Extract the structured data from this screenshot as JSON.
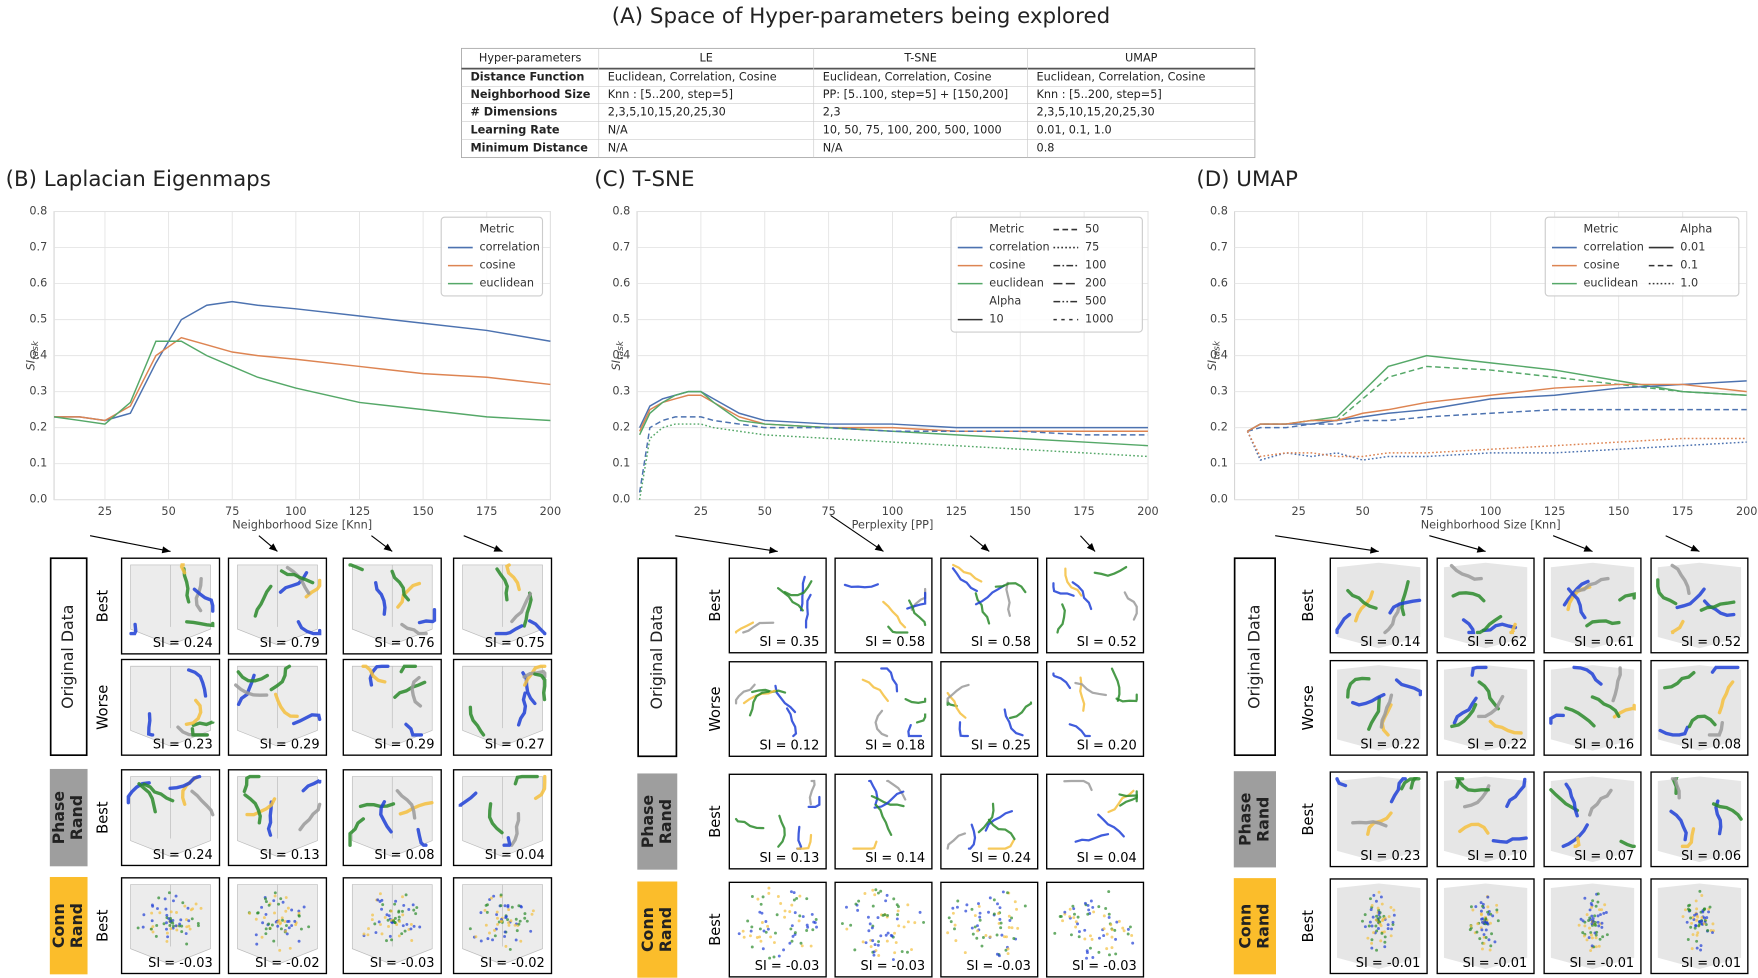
{
  "title": "(A) Space of Hyper-parameters being explored",
  "table": {
    "header": [
      "Hyper-parameters",
      "LE",
      "T-SNE",
      "UMAP"
    ],
    "rows": [
      [
        "Distance Function",
        "Euclidean, Correlation, Cosine",
        "Euclidean, Correlation, Cosine",
        "Euclidean, Correlation, Cosine"
      ],
      [
        "Neighborhood Size",
        "Knn : [5..200, step=5]",
        "PP: [5..100, step=5] + [150,200]",
        "Knn : [5..200, step=5]"
      ],
      [
        "# Dimensions",
        "2,3,5,10,15,20,25,30",
        "2,3",
        "2,3,5,10,15,20,25,30"
      ],
      [
        "Learning Rate",
        "N/A",
        "10, 50, 75, 100, 200, 500, 1000",
        "0.01, 0.1, 1.0"
      ],
      [
        "Minimum Distance",
        "N/A",
        "N/A",
        "0.8"
      ]
    ]
  },
  "chart_data": [
    {
      "type": "line",
      "title": "(B) Laplacian Eigenmaps",
      "xlabel": "Neighborhood Size [Knn]",
      "ylabel": "SI",
      "ylabel_sub": "task",
      "xlim": [
        5,
        200
      ],
      "ylim": [
        0,
        0.8
      ],
      "xticks": [
        25,
        50,
        75,
        100,
        125,
        150,
        175,
        200
      ],
      "yticks": [
        {
          "value": 0,
          "label": "0.0"
        },
        0.1,
        0.2,
        0.3,
        0.4,
        0.5,
        0.6,
        0.7,
        0.8
      ],
      "grid": true,
      "x": [
        5,
        15,
        25,
        35,
        45,
        55,
        65,
        75,
        85,
        100,
        125,
        150,
        175,
        200
      ],
      "series": [
        {
          "name": "correlation",
          "color": "#4c72b0",
          "dash": "solid",
          "values": [
            0.23,
            0.23,
            0.22,
            0.24,
            0.38,
            0.5,
            0.54,
            0.55,
            0.54,
            0.53,
            0.51,
            0.49,
            0.47,
            0.44
          ]
        },
        {
          "name": "cosine",
          "color": "#dd8452",
          "dash": "solid",
          "values": [
            0.23,
            0.23,
            0.22,
            0.26,
            0.4,
            0.45,
            0.43,
            0.41,
            0.4,
            0.39,
            0.37,
            0.35,
            0.34,
            0.32
          ]
        },
        {
          "name": "euclidean",
          "color": "#55a868",
          "dash": "solid",
          "values": [
            0.23,
            0.22,
            0.21,
            0.27,
            0.44,
            0.44,
            0.4,
            0.37,
            0.34,
            0.31,
            0.27,
            0.25,
            0.23,
            0.22
          ]
        }
      ],
      "legend": {
        "corner": "upper right",
        "columns": [
          [
            {
              "label": "Metric"
            },
            {
              "label": "correlation",
              "color": "#4c72b0",
              "dash": "solid"
            },
            {
              "label": "cosine",
              "color": "#dd8452",
              "dash": "solid"
            },
            {
              "label": "euclidean",
              "color": "#55a868",
              "dash": "solid"
            }
          ]
        ]
      }
    },
    {
      "type": "line",
      "title": "(C) T-SNE",
      "xlabel": "Perplexity [PP]",
      "ylabel": "SI",
      "ylabel_sub": "task",
      "xlim": [
        0,
        200
      ],
      "ylim": [
        0,
        0.8
      ],
      "xticks": [
        25,
        50,
        75,
        100,
        125,
        150,
        175,
        200
      ],
      "yticks": [
        {
          "value": 0,
          "label": "0.0"
        },
        0.1,
        0.2,
        0.3,
        0.4,
        0.5,
        0.6,
        0.7,
        0.8
      ],
      "grid": true,
      "x": [
        1,
        5,
        10,
        15,
        20,
        25,
        30,
        40,
        50,
        75,
        100,
        125,
        150,
        175,
        200
      ],
      "series": [
        {
          "name": "correlation",
          "color": "#4c72b0",
          "dash": "solid",
          "values": [
            0.2,
            0.26,
            0.28,
            0.29,
            0.3,
            0.3,
            0.28,
            0.24,
            0.22,
            0.21,
            0.21,
            0.2,
            0.2,
            0.2,
            0.2
          ]
        },
        {
          "name": "cosine",
          "color": "#dd8452",
          "dash": "solid",
          "values": [
            0.19,
            0.25,
            0.27,
            0.28,
            0.29,
            0.29,
            0.27,
            0.23,
            0.21,
            0.2,
            0.2,
            0.19,
            0.19,
            0.19,
            0.19
          ]
        },
        {
          "name": "euclidean",
          "color": "#55a868",
          "dash": "solid",
          "values": [
            0.18,
            0.24,
            0.27,
            0.29,
            0.3,
            0.3,
            0.27,
            0.22,
            0.21,
            0.2,
            0.19,
            0.18,
            0.17,
            0.16,
            0.15
          ]
        },
        {
          "name": "correlation",
          "color": "#4c72b0",
          "dash": "dashed",
          "values": [
            0.02,
            0.2,
            0.22,
            0.23,
            0.23,
            0.23,
            0.22,
            0.21,
            0.2,
            0.2,
            0.19,
            0.19,
            0.19,
            0.18,
            0.18
          ]
        },
        {
          "name": "euclidean",
          "color": "#55a868",
          "dash": "dotted",
          "values": [
            0,
            0.17,
            0.2,
            0.21,
            0.21,
            0.21,
            0.2,
            0.19,
            0.18,
            0.17,
            0.16,
            0.15,
            0.14,
            0.13,
            0.12
          ]
        }
      ],
      "legend": {
        "corner": "upper right",
        "columns": [
          [
            {
              "label": "Metric"
            },
            {
              "label": "correlation",
              "color": "#4c72b0",
              "dash": "solid"
            },
            {
              "label": "cosine",
              "color": "#dd8452",
              "dash": "solid"
            },
            {
              "label": "euclidean",
              "color": "#55a868",
              "dash": "solid"
            },
            {
              "label": "Alpha"
            },
            {
              "label": "10",
              "color": "#333333",
              "dash": "solid"
            }
          ],
          [
            {
              "label": "50",
              "color": "#333333",
              "dash": "dashed"
            },
            {
              "label": "75",
              "color": "#333333",
              "dash": "dotted"
            },
            {
              "label": "100",
              "color": "#333333",
              "dash": "dashdot"
            },
            {
              "label": "200",
              "color": "#333333",
              "dash": "longdash"
            },
            {
              "label": "500",
              "color": "#333333",
              "dash": "dashdotdot"
            },
            {
              "label": "1000",
              "color": "#333333",
              "dash": "loosedash"
            }
          ]
        ]
      }
    },
    {
      "type": "line",
      "title": "(D) UMAP",
      "xlabel": "Neighborhood Size [Knn]",
      "ylabel": "SI",
      "ylabel_sub": "task",
      "xlim": [
        0,
        200
      ],
      "ylim": [
        0,
        0.8
      ],
      "xticks": [
        25,
        50,
        75,
        100,
        125,
        150,
        175,
        200
      ],
      "yticks": [
        {
          "value": 0,
          "label": "0.0"
        },
        0.1,
        0.2,
        0.3,
        0.4,
        0.5,
        0.6,
        0.7,
        0.8
      ],
      "grid": true,
      "x": [
        5,
        10,
        20,
        30,
        40,
        50,
        60,
        75,
        100,
        125,
        150,
        175,
        200
      ],
      "series": [
        {
          "name": "euclidean",
          "color": "#55a868",
          "dash": "solid",
          "values": [
            0.19,
            0.21,
            0.21,
            0.22,
            0.23,
            0.3,
            0.37,
            0.4,
            0.38,
            0.36,
            0.33,
            0.3,
            0.29
          ]
        },
        {
          "name": "euclidean",
          "color": "#55a868",
          "dash": "dashed",
          "values": [
            0.19,
            0.21,
            0.21,
            0.22,
            0.22,
            0.28,
            0.34,
            0.37,
            0.36,
            0.34,
            0.32,
            0.3,
            0.29
          ]
        },
        {
          "name": "correlation",
          "color": "#4c72b0",
          "dash": "solid",
          "values": [
            0.19,
            0.21,
            0.21,
            0.21,
            0.22,
            0.23,
            0.24,
            0.25,
            0.28,
            0.29,
            0.31,
            0.32,
            0.33
          ]
        },
        {
          "name": "correlation",
          "color": "#4c72b0",
          "dash": "dashed",
          "values": [
            0.19,
            0.2,
            0.2,
            0.21,
            0.21,
            0.22,
            0.22,
            0.23,
            0.24,
            0.25,
            0.25,
            0.25,
            0.25
          ]
        },
        {
          "name": "cosine",
          "color": "#dd8452",
          "dash": "solid",
          "values": [
            0.19,
            0.21,
            0.21,
            0.22,
            0.22,
            0.24,
            0.25,
            0.27,
            0.29,
            0.31,
            0.32,
            0.32,
            0.3
          ]
        },
        {
          "name": "correlation",
          "color": "#4c72b0",
          "dash": "dotted",
          "values": [
            0.19,
            0.11,
            0.13,
            0.12,
            0.13,
            0.11,
            0.12,
            0.12,
            0.13,
            0.13,
            0.14,
            0.15,
            0.16
          ]
        },
        {
          "name": "cosine",
          "color": "#dd8452",
          "dash": "dotted",
          "values": [
            0.19,
            0.12,
            0.13,
            0.13,
            0.12,
            0.12,
            0.13,
            0.13,
            0.14,
            0.15,
            0.16,
            0.17,
            0.17
          ]
        }
      ],
      "legend": {
        "corner": "upper right",
        "columns": [
          [
            {
              "label": "Metric"
            },
            {
              "label": "correlation",
              "color": "#4c72b0",
              "dash": "solid"
            },
            {
              "label": "cosine",
              "color": "#dd8452",
              "dash": "solid"
            },
            {
              "label": "euclidean",
              "color": "#55a868",
              "dash": "solid"
            }
          ],
          [
            {
              "label": "Alpha"
            },
            {
              "label": "0.01",
              "color": "#333333",
              "dash": "solid"
            },
            {
              "label": "0.1",
              "color": "#333333",
              "dash": "dashed"
            },
            {
              "label": "1.0",
              "color": "#333333",
              "dash": "dotted"
            }
          ]
        ]
      }
    }
  ],
  "panels": [
    {
      "groups": [
        {
          "label": [
            "Original Data"
          ],
          "style": "outline",
          "rows": [
            {
              "label": "Best",
              "si": [
                "SI = 0.24",
                "SI = 0.79",
                "SI = 0.76",
                "SI = 0.75"
              ]
            },
            {
              "label": "Worse",
              "si": [
                "SI = 0.23",
                "SI = 0.29",
                "SI = 0.29",
                "SI = 0.27"
              ]
            }
          ]
        },
        {
          "label": [
            "Phase",
            "Rand"
          ],
          "style": "gray",
          "rows": [
            {
              "label": "Best",
              "si": [
                "SI = 0.24",
                "SI = 0.13",
                "SI = 0.08",
                "SI = 0.04"
              ]
            }
          ]
        },
        {
          "label": [
            "Conn",
            "Rand"
          ],
          "style": "yellow",
          "rows": [
            {
              "label": "Best",
              "si": [
                "SI = -0.03",
                "SI = -0.02",
                "SI = -0.03",
                "SI = -0.02"
              ]
            }
          ]
        }
      ]
    },
    {
      "groups": [
        {
          "label": [
            "Original Data"
          ],
          "style": "outline",
          "rows": [
            {
              "label": "Best",
              "si": [
                "SI = 0.35",
                "SI = 0.58",
                "SI = 0.58",
                "SI = 0.52"
              ]
            },
            {
              "label": "Worse",
              "si": [
                "SI = 0.12",
                "SI = 0.18",
                "SI = 0.25",
                "SI = 0.20"
              ]
            }
          ]
        },
        {
          "label": [
            "Phase",
            "Rand"
          ],
          "style": "gray",
          "rows": [
            {
              "label": "Best",
              "si": [
                "SI = 0.13",
                "SI = 0.14",
                "SI = 0.24",
                "SI = 0.04"
              ]
            }
          ]
        },
        {
          "label": [
            "Conn",
            "Rand"
          ],
          "style": "yellow",
          "rows": [
            {
              "label": "Best",
              "si": [
                "SI = -0.03",
                "SI = -0.03",
                "SI = -0.03",
                "SI = -0.03"
              ]
            }
          ]
        }
      ]
    },
    {
      "groups": [
        {
          "label": [
            "Original Data"
          ],
          "style": "outline",
          "rows": [
            {
              "label": "Best",
              "si": [
                "SI = 0.14",
                "SI = 0.62",
                "SI = 0.61",
                "SI = 0.52"
              ]
            },
            {
              "label": "Worse",
              "si": [
                "SI = 0.22",
                "SI = 0.22",
                "SI = 0.16",
                "SI = 0.08"
              ]
            }
          ]
        },
        {
          "label": [
            "Phase",
            "Rand"
          ],
          "style": "gray",
          "rows": [
            {
              "label": "Best",
              "si": [
                "SI = 0.23",
                "SI = 0.10",
                "SI = 0.07",
                "SI = 0.06"
              ]
            }
          ]
        },
        {
          "label": [
            "Conn",
            "Rand"
          ],
          "style": "yellow",
          "rows": [
            {
              "label": "Best",
              "si": [
                "SI = -0.01",
                "SI = -0.01",
                "SI = -0.01",
                "SI = 0.01"
              ]
            }
          ]
        }
      ]
    }
  ]
}
